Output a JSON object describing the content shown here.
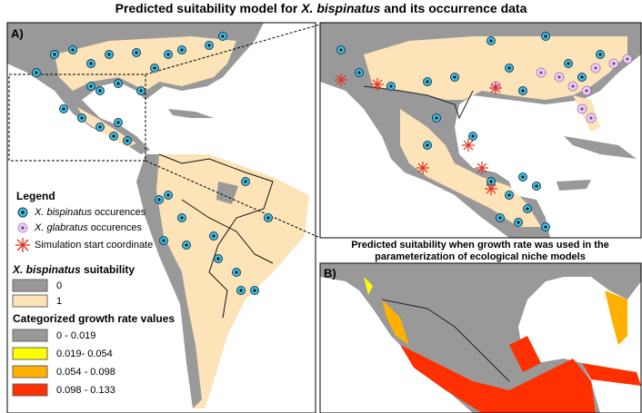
{
  "title": {
    "before": "Predicted suitability model for ",
    "species": "X. bispinatus",
    "after": " and its occurrence data"
  },
  "panel_a": {
    "label": "A)",
    "legend": {
      "heading": "Legend",
      "items": [
        {
          "species": "X. bispinatus",
          "text": " occurences"
        },
        {
          "species": "X. glabratus",
          "text": " occurences"
        },
        {
          "text": "Simulation start coordinate"
        }
      ]
    },
    "suitability": {
      "species": "X. bispinatus",
      "text": " suitability",
      "classes": [
        "0",
        "1"
      ]
    },
    "growth": {
      "heading": "Categorized growth rate values",
      "classes": [
        "0 - 0.019",
        "0.019- 0.054",
        "0.054 - 0.098",
        "0.098 - 0.133"
      ]
    }
  },
  "panel_b": {
    "label": "B)",
    "caption": [
      "Predicted suitability when growth rate was used in the",
      "parameterization of ecological niche models"
    ]
  }
}
